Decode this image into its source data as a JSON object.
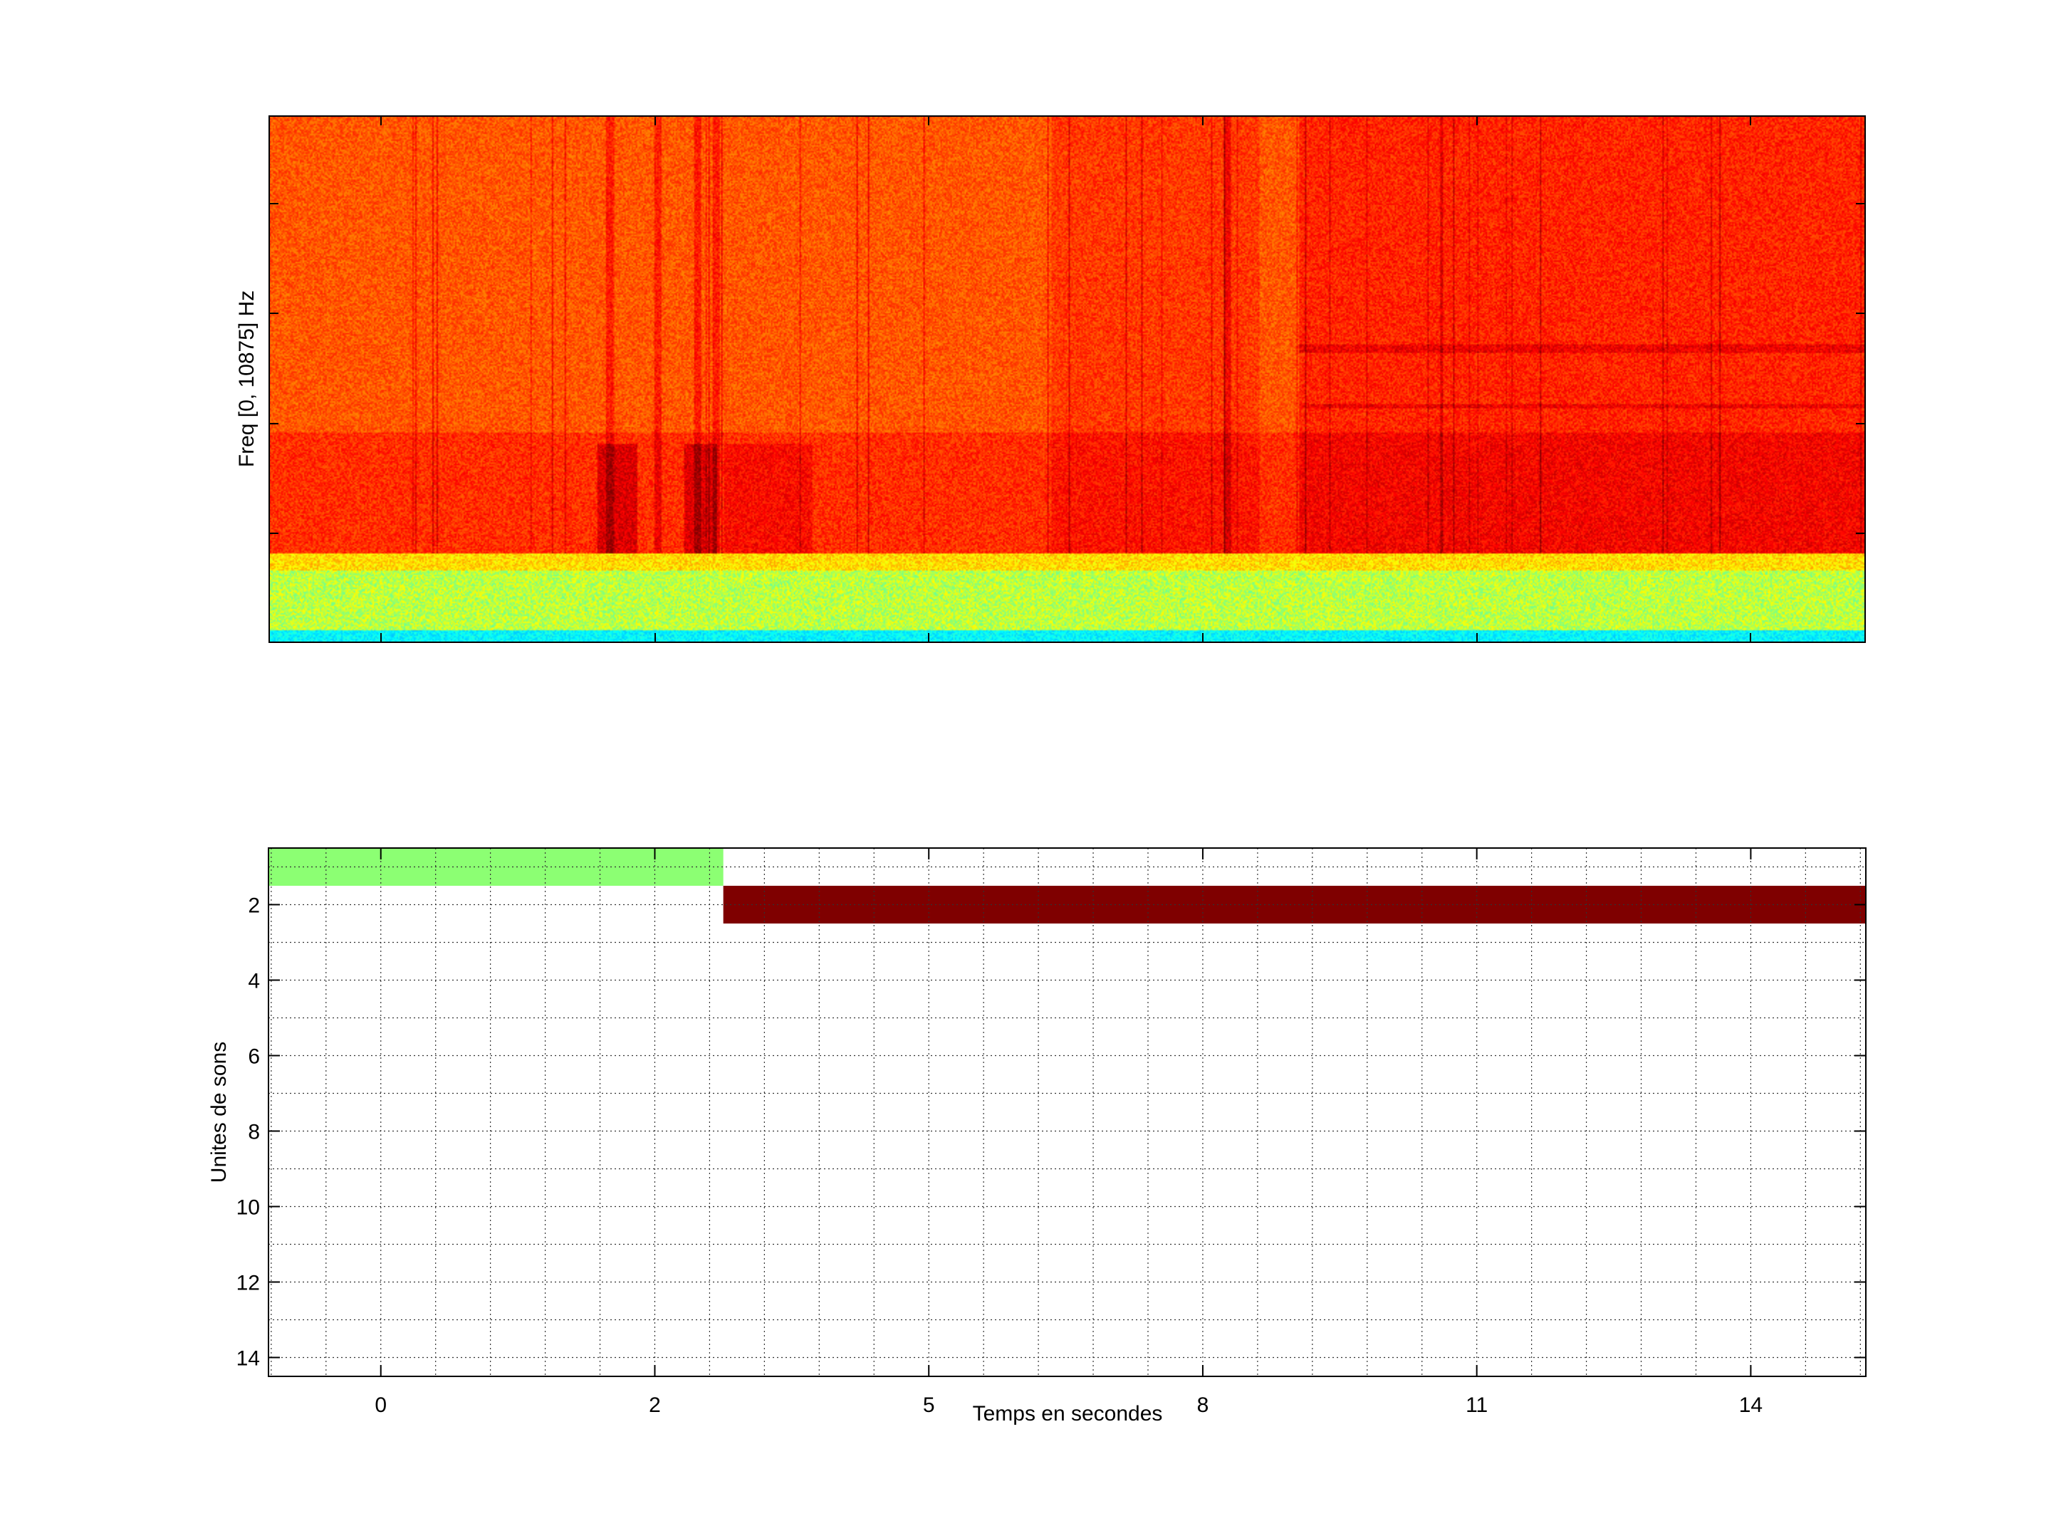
{
  "chart_data": [
    {
      "type": "heatmap",
      "ylabel": "Freq [0, 10875] Hz",
      "xlabel": "",
      "colormap": "jet",
      "y_tick_labels": [],
      "x_tick_labels": []
    },
    {
      "type": "bar",
      "orientation": "horizontal-segments",
      "xlabel": "Temps en secondes",
      "ylabel": "Unites de sons",
      "x_tick_labels": [
        "0",
        "2",
        "5",
        "8",
        "11",
        "14"
      ],
      "x_tick_positions_index": [
        0,
        1,
        2,
        3,
        4,
        5
      ],
      "xlim_index": [
        -0.41,
        5.42
      ],
      "y_tick_labels": [
        "2",
        "4",
        "6",
        "8",
        "10",
        "12",
        "14"
      ],
      "y_ticks": [
        2,
        4,
        6,
        8,
        10,
        12,
        14
      ],
      "ylim": [
        0.5,
        14.5
      ],
      "y_reversed": true,
      "grid": true,
      "segments": [
        {
          "unit": 1,
          "start_index": -0.41,
          "end_index": 1.25,
          "color": "#8CFF73"
        },
        {
          "unit": 2,
          "start_index": 1.25,
          "end_index": 5.42,
          "color": "#7F0000"
        }
      ]
    }
  ]
}
